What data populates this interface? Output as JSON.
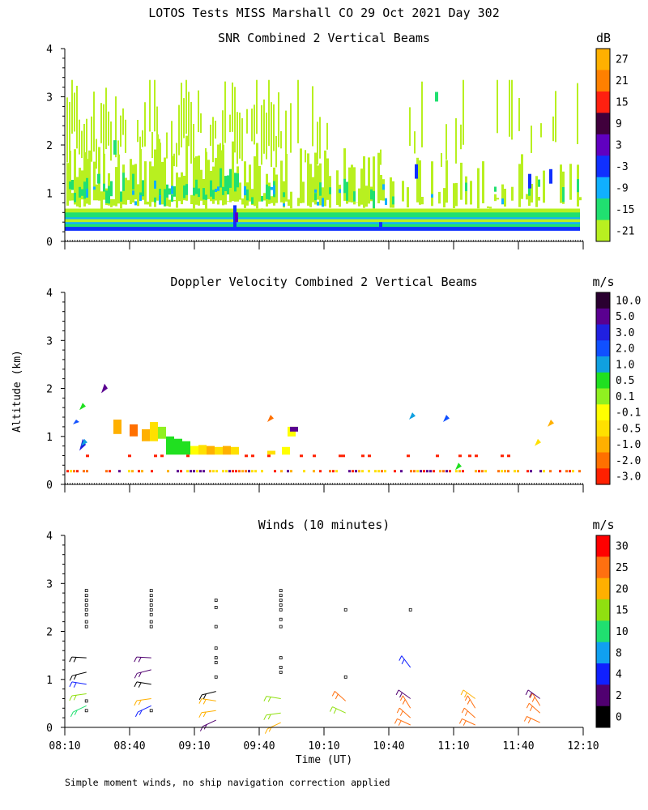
{
  "page_title": "LOTOS Tests MISS Marshall CO  29 Oct 2021 Day 302",
  "shared_axes": {
    "ylabel": "Altitude (km)",
    "xlabel": "Time (UT)",
    "ylim": [
      0,
      4
    ],
    "yticks": [
      "0",
      "1",
      "2",
      "3",
      "4"
    ],
    "xlim_minutes": [
      490,
      730
    ],
    "xticks": [
      {
        "label": "08:10",
        "minutes": 490
      },
      {
        "label": "08:40",
        "minutes": 520
      },
      {
        "label": "09:10",
        "minutes": 550
      },
      {
        "label": "09:40",
        "minutes": 580
      },
      {
        "label": "10:10",
        "minutes": 610
      },
      {
        "label": "10:40",
        "minutes": 640
      },
      {
        "label": "11:10",
        "minutes": 670
      },
      {
        "label": "11:40",
        "minutes": 700
      },
      {
        "label": "12:10",
        "minutes": 730
      }
    ]
  },
  "footnote": "Simple moment winds, no ship navigation correction applied",
  "chart_data": [
    {
      "type": "heatmap",
      "title": "SNR Combined 2 Vertical Beams",
      "colorbar_unit": "dB",
      "colorbar_labels": [
        "27",
        "21",
        "15",
        "9",
        "3",
        "-3",
        "-9",
        "-15",
        "-21"
      ],
      "colorbar_colors": [
        "#ffb000",
        "#ff8000",
        "#ff2010",
        "#40003c",
        "#6000c0",
        "#1030ff",
        "#10b0ff",
        "#20e070",
        "#b8f020"
      ],
      "description_bands": [
        {
          "alt_km": [
            0.25,
            0.65
          ],
          "level_db": "-15 to -3",
          "note": "persistent low-level layer"
        },
        {
          "alt_km": [
            0.65,
            1.6
          ],
          "level_db": "-21 to -9",
          "note": "stronger before 09:40"
        },
        {
          "alt_km": [
            1.6,
            3.3
          ],
          "level_db": "-21",
          "note": "patchy, mostly 08:10-09:40"
        }
      ]
    },
    {
      "type": "heatmap",
      "title": "Doppler Velocity Combined 2 Vertical Beams",
      "colorbar_unit": "m/s",
      "colorbar_labels": [
        "10.0",
        "5.0",
        "3.0",
        "2.0",
        "1.0",
        "0.5",
        "0.1",
        "-0.1",
        "-0.5",
        "-1.0",
        "-2.0",
        "-3.0"
      ],
      "colorbar_colors": [
        "#2a0030",
        "#5a0090",
        "#2020e0",
        "#1050ff",
        "#10a0e0",
        "#20e020",
        "#90f020",
        "#ffff00",
        "#ffe000",
        "#ffb000",
        "#ff7000",
        "#ff2000"
      ],
      "description_bands": [
        {
          "alt_km": [
            0.6,
            1.0
          ],
          "level_ms": "0.5 to -0.5",
          "note": "patch near 09:00-09:30"
        },
        {
          "alt_km": [
            0.25,
            0.3
          ],
          "level_ms": "-0.5 to -2.0",
          "note": "thin layer through period"
        }
      ]
    },
    {
      "type": "scatter",
      "title": "Winds (10 minutes)",
      "colorbar_unit": "m/s",
      "colorbar_labels": [
        "30",
        "25",
        "20",
        "15",
        "10",
        "8",
        "4",
        "2",
        "0"
      ],
      "colorbar_colors": [
        "#ff0000",
        "#ff7010",
        "#ffb000",
        "#90e010",
        "#20e070",
        "#10a0f0",
        "#1020ff",
        "#500070",
        "#000000"
      ],
      "note": "wind barbs at approx 08:20, 08:50, 09:20, 09:50, 10:20, 10:50, 11:20, 11:50; squares mark missing estimates",
      "profiles": [
        {
          "time_min": 500,
          "missing_km": [
            0.35,
            0.55,
            2.1,
            2.2,
            2.35,
            2.45,
            2.55,
            2.65,
            2.75,
            2.85
          ],
          "barbs": [
            {
              "alt": 0.45,
              "speed_class": "10"
            },
            {
              "alt": 0.7,
              "speed_class": "15"
            },
            {
              "alt": 0.9,
              "speed_class": "4"
            },
            {
              "alt": 1.15,
              "speed_class": "0"
            },
            {
              "alt": 1.45,
              "speed_class": "0"
            }
          ]
        },
        {
          "time_min": 530,
          "missing_km": [
            0.35,
            2.1,
            2.2,
            2.35,
            2.45,
            2.55,
            2.65,
            2.75,
            2.85
          ],
          "barbs": [
            {
              "alt": 0.45,
              "speed_class": "4"
            },
            {
              "alt": 0.6,
              "speed_class": "20"
            },
            {
              "alt": 0.9,
              "speed_class": "0"
            },
            {
              "alt": 1.2,
              "speed_class": "2"
            },
            {
              "alt": 1.45,
              "speed_class": "2"
            }
          ]
        },
        {
          "time_min": 560,
          "missing_km": [
            1.05,
            1.35,
            1.45,
            1.65,
            2.1,
            2.5,
            2.65
          ],
          "barbs": [
            {
              "alt": 0.15,
              "speed_class": "2"
            },
            {
              "alt": 0.35,
              "speed_class": "20"
            },
            {
              "alt": 0.55,
              "speed_class": "20"
            },
            {
              "alt": 0.75,
              "speed_class": "0"
            }
          ]
        },
        {
          "time_min": 590,
          "missing_km": [
            1.15,
            1.25,
            1.45,
            2.1,
            2.25,
            2.45,
            2.55,
            2.65,
            2.75,
            2.85
          ],
          "barbs": [
            {
              "alt": 0.1,
              "speed_class": "20"
            },
            {
              "alt": 0.3,
              "speed_class": "15"
            },
            {
              "alt": 0.6,
              "speed_class": "15"
            }
          ]
        },
        {
          "time_min": 620,
          "missing_km": [
            1.05,
            2.45
          ],
          "barbs": [
            {
              "alt": 0.3,
              "speed_class": "15"
            },
            {
              "alt": 0.55,
              "speed_class": "25"
            }
          ]
        },
        {
          "time_min": 650,
          "missing_km": [
            2.45
          ],
          "barbs": [
            {
              "alt": 0.05,
              "speed_class": "25"
            },
            {
              "alt": 0.2,
              "speed_class": "25"
            },
            {
              "alt": 0.4,
              "speed_class": "25"
            },
            {
              "alt": 0.6,
              "speed_class": "2"
            },
            {
              "alt": 1.25,
              "speed_class": "4"
            }
          ]
        },
        {
          "time_min": 680,
          "missing_km": [],
          "barbs": [
            {
              "alt": 0.05,
              "speed_class": "25"
            },
            {
              "alt": 0.2,
              "speed_class": "25"
            },
            {
              "alt": 0.4,
              "speed_class": "25"
            },
            {
              "alt": 0.6,
              "speed_class": "20"
            }
          ]
        },
        {
          "time_min": 710,
          "missing_km": [],
          "barbs": [
            {
              "alt": 0.1,
              "speed_class": "25"
            },
            {
              "alt": 0.3,
              "speed_class": "25"
            },
            {
              "alt": 0.45,
              "speed_class": "25"
            },
            {
              "alt": 0.6,
              "speed_class": "2"
            }
          ]
        }
      ]
    }
  ]
}
